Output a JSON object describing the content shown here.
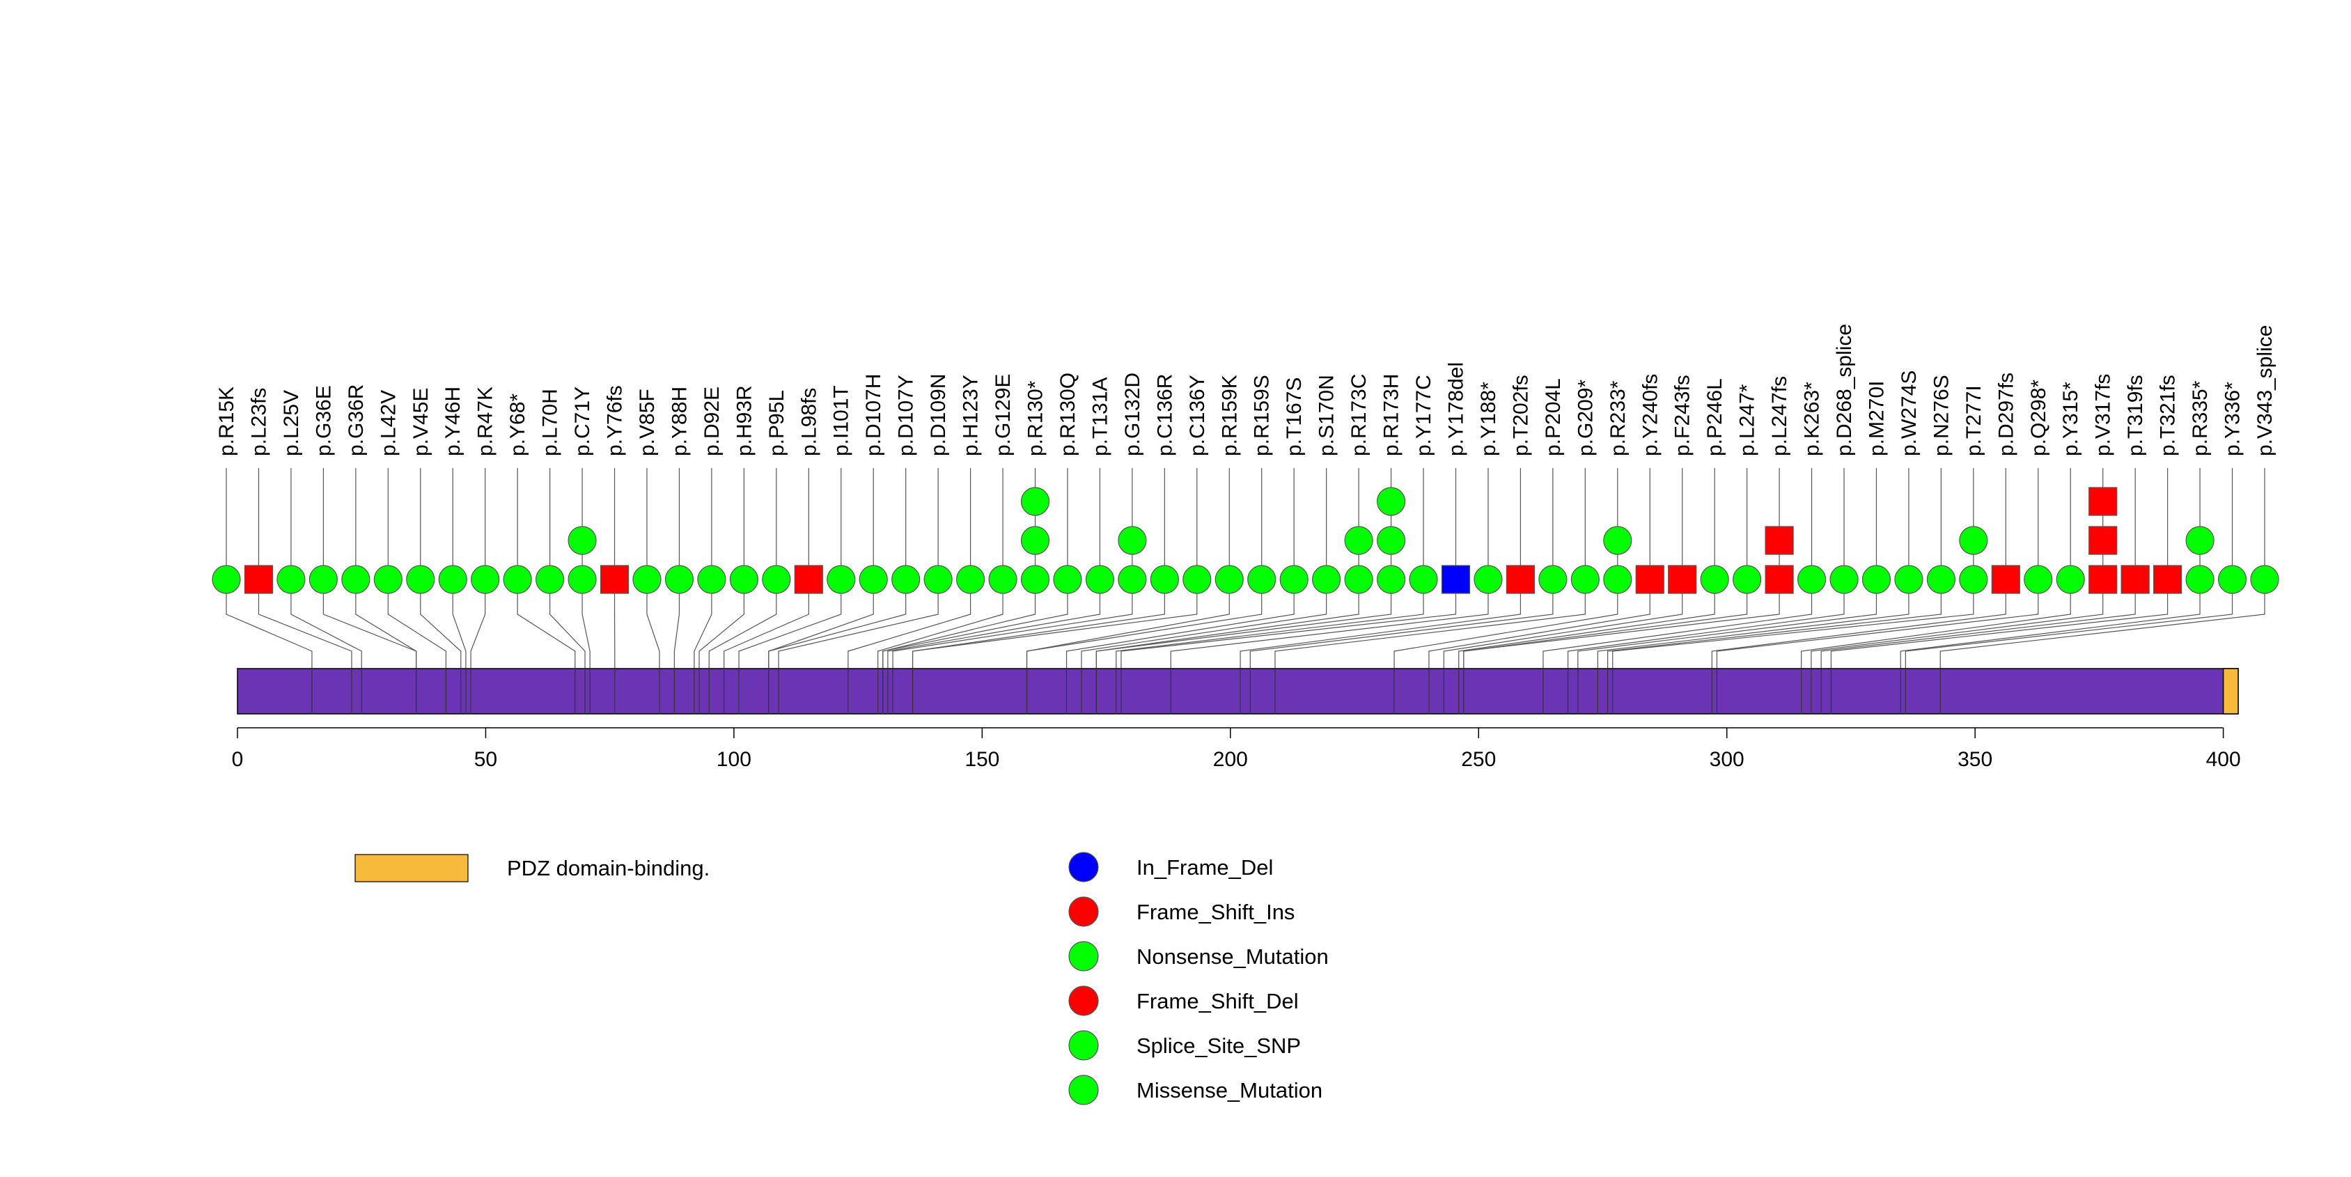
{
  "chart_data": {
    "type": "lollipop",
    "axis": {
      "min": 0,
      "max": 403,
      "ticks": [
        0,
        50,
        100,
        150,
        200,
        250,
        300,
        350,
        400
      ]
    },
    "domains": [
      {
        "name": "PDZ domain-binding.",
        "start": 400,
        "end": 403,
        "color": "#F8BA3A"
      }
    ],
    "protein_color": "#6B34B4",
    "mutation_types": [
      {
        "name": "In_Frame_Del",
        "color": "#0000FF",
        "shape": "square"
      },
      {
        "name": "Frame_Shift_Ins",
        "color": "#FF0000",
        "shape": "square"
      },
      {
        "name": "Nonsense_Mutation",
        "color": "#00FF00",
        "shape": "circle"
      },
      {
        "name": "Frame_Shift_Del",
        "color": "#FF0000",
        "shape": "square"
      },
      {
        "name": "Splice_Site_SNP",
        "color": "#00FF00",
        "shape": "circle"
      },
      {
        "name": "Missense_Mutation",
        "color": "#00FF00",
        "shape": "circle"
      }
    ],
    "mutations": [
      {
        "label": "p.R15K",
        "pos": 15,
        "count": 1,
        "type": "Missense_Mutation"
      },
      {
        "label": "p.L23fs",
        "pos": 23,
        "count": 1,
        "type": "Frame_Shift_Del"
      },
      {
        "label": "p.L25V",
        "pos": 25,
        "count": 1,
        "type": "Missense_Mutation"
      },
      {
        "label": "p.G36E",
        "pos": 36,
        "count": 1,
        "type": "Missense_Mutation"
      },
      {
        "label": "p.G36R",
        "pos": 36,
        "count": 1,
        "type": "Missense_Mutation"
      },
      {
        "label": "p.L42V",
        "pos": 42,
        "count": 1,
        "type": "Missense_Mutation"
      },
      {
        "label": "p.V45E",
        "pos": 45,
        "count": 1,
        "type": "Missense_Mutation"
      },
      {
        "label": "p.Y46H",
        "pos": 46,
        "count": 1,
        "type": "Missense_Mutation"
      },
      {
        "label": "p.R47K",
        "pos": 47,
        "count": 1,
        "type": "Missense_Mutation"
      },
      {
        "label": "p.Y68*",
        "pos": 68,
        "count": 1,
        "type": "Nonsense_Mutation"
      },
      {
        "label": "p.L70H",
        "pos": 70,
        "count": 1,
        "type": "Missense_Mutation"
      },
      {
        "label": "p.C71Y",
        "pos": 71,
        "count": 2,
        "type": "Missense_Mutation"
      },
      {
        "label": "p.Y76fs",
        "pos": 76,
        "count": 1,
        "type": "Frame_Shift_Del"
      },
      {
        "label": "p.V85F",
        "pos": 85,
        "count": 1,
        "type": "Missense_Mutation"
      },
      {
        "label": "p.Y88H",
        "pos": 88,
        "count": 1,
        "type": "Missense_Mutation"
      },
      {
        "label": "p.D92E",
        "pos": 92,
        "count": 1,
        "type": "Missense_Mutation"
      },
      {
        "label": "p.H93R",
        "pos": 93,
        "count": 1,
        "type": "Missense_Mutation"
      },
      {
        "label": "p.P95L",
        "pos": 95,
        "count": 1,
        "type": "Missense_Mutation"
      },
      {
        "label": "p.L98fs",
        "pos": 98,
        "count": 1,
        "type": "Frame_Shift_Del"
      },
      {
        "label": "p.I101T",
        "pos": 101,
        "count": 1,
        "type": "Missense_Mutation"
      },
      {
        "label": "p.D107H",
        "pos": 107,
        "count": 1,
        "type": "Missense_Mutation"
      },
      {
        "label": "p.D107Y",
        "pos": 107,
        "count": 1,
        "type": "Missense_Mutation"
      },
      {
        "label": "p.D109N",
        "pos": 109,
        "count": 1,
        "type": "Missense_Mutation"
      },
      {
        "label": "p.H123Y",
        "pos": 123,
        "count": 1,
        "type": "Missense_Mutation"
      },
      {
        "label": "p.G129E",
        "pos": 129,
        "count": 1,
        "type": "Missense_Mutation"
      },
      {
        "label": "p.R130*",
        "pos": 130,
        "count": 3,
        "type": "Nonsense_Mutation"
      },
      {
        "label": "p.R130Q",
        "pos": 130,
        "count": 1,
        "type": "Missense_Mutation"
      },
      {
        "label": "p.T131A",
        "pos": 131,
        "count": 1,
        "type": "Missense_Mutation"
      },
      {
        "label": "p.G132D",
        "pos": 132,
        "count": 2,
        "type": "Missense_Mutation"
      },
      {
        "label": "p.C136R",
        "pos": 136,
        "count": 1,
        "type": "Missense_Mutation"
      },
      {
        "label": "p.C136Y",
        "pos": 136,
        "count": 1,
        "type": "Missense_Mutation"
      },
      {
        "label": "p.R159K",
        "pos": 159,
        "count": 1,
        "type": "Missense_Mutation"
      },
      {
        "label": "p.R159S",
        "pos": 159,
        "count": 1,
        "type": "Missense_Mutation"
      },
      {
        "label": "p.T167S",
        "pos": 167,
        "count": 1,
        "type": "Missense_Mutation"
      },
      {
        "label": "p.S170N",
        "pos": 170,
        "count": 1,
        "type": "Missense_Mutation"
      },
      {
        "label": "p.R173C",
        "pos": 173,
        "count": 2,
        "type": "Missense_Mutation"
      },
      {
        "label": "p.R173H",
        "pos": 173,
        "count": 3,
        "type": "Missense_Mutation"
      },
      {
        "label": "p.Y177C",
        "pos": 177,
        "count": 1,
        "type": "Missense_Mutation"
      },
      {
        "label": "p.Y178del",
        "pos": 178,
        "count": 1,
        "type": "In_Frame_Del"
      },
      {
        "label": "p.Y188*",
        "pos": 188,
        "count": 1,
        "type": "Nonsense_Mutation"
      },
      {
        "label": "p.T202fs",
        "pos": 202,
        "count": 1,
        "type": "Frame_Shift_Del"
      },
      {
        "label": "p.P204L",
        "pos": 204,
        "count": 1,
        "type": "Missense_Mutation"
      },
      {
        "label": "p.G209*",
        "pos": 209,
        "count": 1,
        "type": "Nonsense_Mutation"
      },
      {
        "label": "p.R233*",
        "pos": 233,
        "count": 2,
        "type": "Nonsense_Mutation"
      },
      {
        "label": "p.Y240fs",
        "pos": 240,
        "count": 1,
        "type": "Frame_Shift_Del"
      },
      {
        "label": "p.F243fs",
        "pos": 243,
        "count": 1,
        "type": "Frame_Shift_Del"
      },
      {
        "label": "p.P246L",
        "pos": 246,
        "count": 1,
        "type": "Missense_Mutation"
      },
      {
        "label": "p.L247*",
        "pos": 247,
        "count": 1,
        "type": "Nonsense_Mutation"
      },
      {
        "label": "p.L247fs",
        "pos": 247,
        "count": 2,
        "type": "Frame_Shift_Del"
      },
      {
        "label": "p.K263*",
        "pos": 263,
        "count": 1,
        "type": "Nonsense_Mutation"
      },
      {
        "label": "p.D268_splice",
        "pos": 268,
        "count": 1,
        "type": "Splice_Site_SNP"
      },
      {
        "label": "p.M270I",
        "pos": 270,
        "count": 1,
        "type": "Missense_Mutation"
      },
      {
        "label": "p.W274S",
        "pos": 274,
        "count": 1,
        "type": "Missense_Mutation"
      },
      {
        "label": "p.N276S",
        "pos": 276,
        "count": 1,
        "type": "Missense_Mutation"
      },
      {
        "label": "p.T277I",
        "pos": 277,
        "count": 2,
        "type": "Missense_Mutation"
      },
      {
        "label": "p.D297fs",
        "pos": 297,
        "count": 1,
        "type": "Frame_Shift_Del"
      },
      {
        "label": "p.Q298*",
        "pos": 298,
        "count": 1,
        "type": "Nonsense_Mutation"
      },
      {
        "label": "p.Y315*",
        "pos": 315,
        "count": 1,
        "type": "Nonsense_Mutation"
      },
      {
        "label": "p.V317fs",
        "pos": 317,
        "count": 3,
        "type": "Frame_Shift_Del"
      },
      {
        "label": "p.T319fs",
        "pos": 319,
        "count": 1,
        "type": "Frame_Shift_Del"
      },
      {
        "label": "p.T321fs",
        "pos": 321,
        "count": 1,
        "type": "Frame_Shift_Del"
      },
      {
        "label": "p.R335*",
        "pos": 335,
        "count": 2,
        "type": "Nonsense_Mutation"
      },
      {
        "label": "p.Y336*",
        "pos": 336,
        "count": 1,
        "type": "Nonsense_Mutation"
      },
      {
        "label": "p.V343_splice",
        "pos": 343,
        "count": 1,
        "type": "Splice_Site_SNP"
      }
    ]
  }
}
